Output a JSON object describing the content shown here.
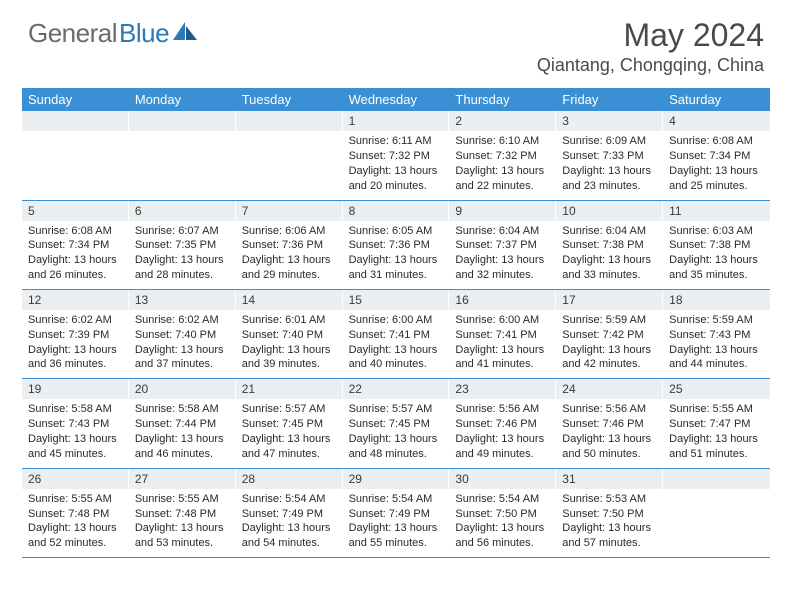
{
  "brand": {
    "part1": "General",
    "part2": "Blue"
  },
  "title": "May 2024",
  "location": "Qiantang, Chongqing, China",
  "colors": {
    "header_bg": "#3b8fd4",
    "daynum_bg": "#eceff1",
    "brand_gray": "#6b6b6b",
    "brand_blue": "#2a7ab8",
    "text": "#2a2a2a",
    "title_text": "#4a4a4a"
  },
  "day_names": [
    "Sunday",
    "Monday",
    "Tuesday",
    "Wednesday",
    "Thursday",
    "Friday",
    "Saturday"
  ],
  "weeks": [
    [
      {
        "n": "",
        "sunrise": "",
        "sunset": "",
        "daylight": ""
      },
      {
        "n": "",
        "sunrise": "",
        "sunset": "",
        "daylight": ""
      },
      {
        "n": "",
        "sunrise": "",
        "sunset": "",
        "daylight": ""
      },
      {
        "n": "1",
        "sunrise": "Sunrise: 6:11 AM",
        "sunset": "Sunset: 7:32 PM",
        "daylight": "Daylight: 13 hours\nand 20 minutes."
      },
      {
        "n": "2",
        "sunrise": "Sunrise: 6:10 AM",
        "sunset": "Sunset: 7:32 PM",
        "daylight": "Daylight: 13 hours\nand 22 minutes."
      },
      {
        "n": "3",
        "sunrise": "Sunrise: 6:09 AM",
        "sunset": "Sunset: 7:33 PM",
        "daylight": "Daylight: 13 hours\nand 23 minutes."
      },
      {
        "n": "4",
        "sunrise": "Sunrise: 6:08 AM",
        "sunset": "Sunset: 7:34 PM",
        "daylight": "Daylight: 13 hours\nand 25 minutes."
      }
    ],
    [
      {
        "n": "5",
        "sunrise": "Sunrise: 6:08 AM",
        "sunset": "Sunset: 7:34 PM",
        "daylight": "Daylight: 13 hours\nand 26 minutes."
      },
      {
        "n": "6",
        "sunrise": "Sunrise: 6:07 AM",
        "sunset": "Sunset: 7:35 PM",
        "daylight": "Daylight: 13 hours\nand 28 minutes."
      },
      {
        "n": "7",
        "sunrise": "Sunrise: 6:06 AM",
        "sunset": "Sunset: 7:36 PM",
        "daylight": "Daylight: 13 hours\nand 29 minutes."
      },
      {
        "n": "8",
        "sunrise": "Sunrise: 6:05 AM",
        "sunset": "Sunset: 7:36 PM",
        "daylight": "Daylight: 13 hours\nand 31 minutes."
      },
      {
        "n": "9",
        "sunrise": "Sunrise: 6:04 AM",
        "sunset": "Sunset: 7:37 PM",
        "daylight": "Daylight: 13 hours\nand 32 minutes."
      },
      {
        "n": "10",
        "sunrise": "Sunrise: 6:04 AM",
        "sunset": "Sunset: 7:38 PM",
        "daylight": "Daylight: 13 hours\nand 33 minutes."
      },
      {
        "n": "11",
        "sunrise": "Sunrise: 6:03 AM",
        "sunset": "Sunset: 7:38 PM",
        "daylight": "Daylight: 13 hours\nand 35 minutes."
      }
    ],
    [
      {
        "n": "12",
        "sunrise": "Sunrise: 6:02 AM",
        "sunset": "Sunset: 7:39 PM",
        "daylight": "Daylight: 13 hours\nand 36 minutes."
      },
      {
        "n": "13",
        "sunrise": "Sunrise: 6:02 AM",
        "sunset": "Sunset: 7:40 PM",
        "daylight": "Daylight: 13 hours\nand 37 minutes."
      },
      {
        "n": "14",
        "sunrise": "Sunrise: 6:01 AM",
        "sunset": "Sunset: 7:40 PM",
        "daylight": "Daylight: 13 hours\nand 39 minutes."
      },
      {
        "n": "15",
        "sunrise": "Sunrise: 6:00 AM",
        "sunset": "Sunset: 7:41 PM",
        "daylight": "Daylight: 13 hours\nand 40 minutes."
      },
      {
        "n": "16",
        "sunrise": "Sunrise: 6:00 AM",
        "sunset": "Sunset: 7:41 PM",
        "daylight": "Daylight: 13 hours\nand 41 minutes."
      },
      {
        "n": "17",
        "sunrise": "Sunrise: 5:59 AM",
        "sunset": "Sunset: 7:42 PM",
        "daylight": "Daylight: 13 hours\nand 42 minutes."
      },
      {
        "n": "18",
        "sunrise": "Sunrise: 5:59 AM",
        "sunset": "Sunset: 7:43 PM",
        "daylight": "Daylight: 13 hours\nand 44 minutes."
      }
    ],
    [
      {
        "n": "19",
        "sunrise": "Sunrise: 5:58 AM",
        "sunset": "Sunset: 7:43 PM",
        "daylight": "Daylight: 13 hours\nand 45 minutes."
      },
      {
        "n": "20",
        "sunrise": "Sunrise: 5:58 AM",
        "sunset": "Sunset: 7:44 PM",
        "daylight": "Daylight: 13 hours\nand 46 minutes."
      },
      {
        "n": "21",
        "sunrise": "Sunrise: 5:57 AM",
        "sunset": "Sunset: 7:45 PM",
        "daylight": "Daylight: 13 hours\nand 47 minutes."
      },
      {
        "n": "22",
        "sunrise": "Sunrise: 5:57 AM",
        "sunset": "Sunset: 7:45 PM",
        "daylight": "Daylight: 13 hours\nand 48 minutes."
      },
      {
        "n": "23",
        "sunrise": "Sunrise: 5:56 AM",
        "sunset": "Sunset: 7:46 PM",
        "daylight": "Daylight: 13 hours\nand 49 minutes."
      },
      {
        "n": "24",
        "sunrise": "Sunrise: 5:56 AM",
        "sunset": "Sunset: 7:46 PM",
        "daylight": "Daylight: 13 hours\nand 50 minutes."
      },
      {
        "n": "25",
        "sunrise": "Sunrise: 5:55 AM",
        "sunset": "Sunset: 7:47 PM",
        "daylight": "Daylight: 13 hours\nand 51 minutes."
      }
    ],
    [
      {
        "n": "26",
        "sunrise": "Sunrise: 5:55 AM",
        "sunset": "Sunset: 7:48 PM",
        "daylight": "Daylight: 13 hours\nand 52 minutes."
      },
      {
        "n": "27",
        "sunrise": "Sunrise: 5:55 AM",
        "sunset": "Sunset: 7:48 PM",
        "daylight": "Daylight: 13 hours\nand 53 minutes."
      },
      {
        "n": "28",
        "sunrise": "Sunrise: 5:54 AM",
        "sunset": "Sunset: 7:49 PM",
        "daylight": "Daylight: 13 hours\nand 54 minutes."
      },
      {
        "n": "29",
        "sunrise": "Sunrise: 5:54 AM",
        "sunset": "Sunset: 7:49 PM",
        "daylight": "Daylight: 13 hours\nand 55 minutes."
      },
      {
        "n": "30",
        "sunrise": "Sunrise: 5:54 AM",
        "sunset": "Sunset: 7:50 PM",
        "daylight": "Daylight: 13 hours\nand 56 minutes."
      },
      {
        "n": "31",
        "sunrise": "Sunrise: 5:53 AM",
        "sunset": "Sunset: 7:50 PM",
        "daylight": "Daylight: 13 hours\nand 57 minutes."
      },
      {
        "n": "",
        "sunrise": "",
        "sunset": "",
        "daylight": ""
      }
    ]
  ]
}
